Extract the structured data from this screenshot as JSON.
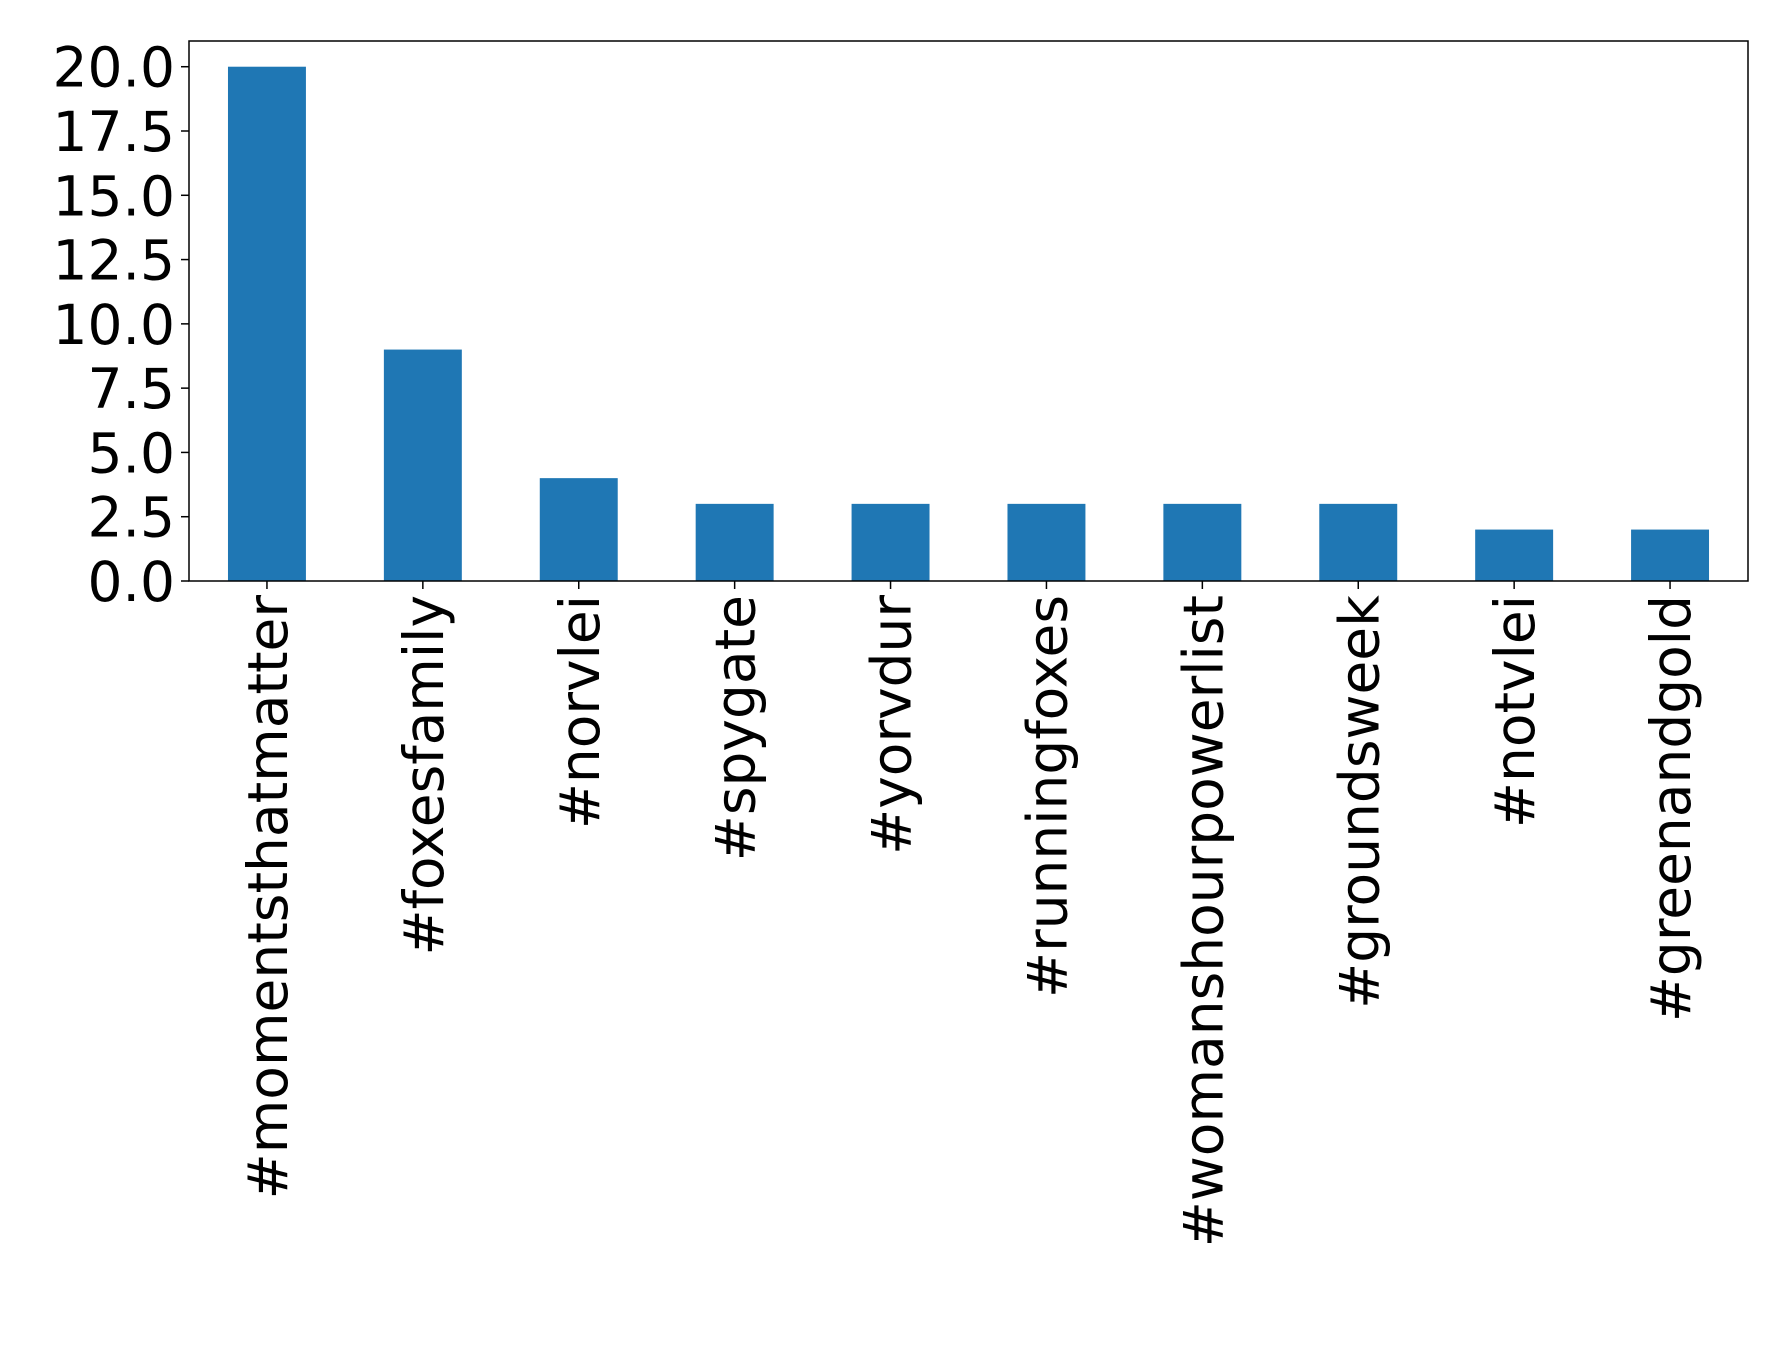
{
  "chart_data": {
    "type": "bar",
    "categories": [
      "#momentsthatmatter",
      "#foxesfamily",
      "#norvlei",
      "#spygate",
      "#yorvdur",
      "#runningfoxes",
      "#womanshourpowerlist",
      "#groundsweek",
      "#notvlei",
      "#greenandgold"
    ],
    "values": [
      20,
      9,
      4,
      3,
      3,
      3,
      3,
      3,
      2,
      2
    ],
    "color": "#1f77b4",
    "ylim": [
      0,
      21
    ],
    "yticks": [
      {
        "value": 0,
        "label": "0.0"
      },
      {
        "value": 2.5,
        "label": "2.5"
      },
      {
        "value": 5,
        "label": "5.0"
      },
      {
        "value": 7.5,
        "label": "7.5"
      },
      {
        "value": 10,
        "label": "10.0"
      },
      {
        "value": 12.5,
        "label": "12.5"
      },
      {
        "value": 15,
        "label": "15.0"
      },
      {
        "value": 17.5,
        "label": "17.5"
      },
      {
        "value": 20,
        "label": "20.0"
      }
    ],
    "grid": false
  }
}
